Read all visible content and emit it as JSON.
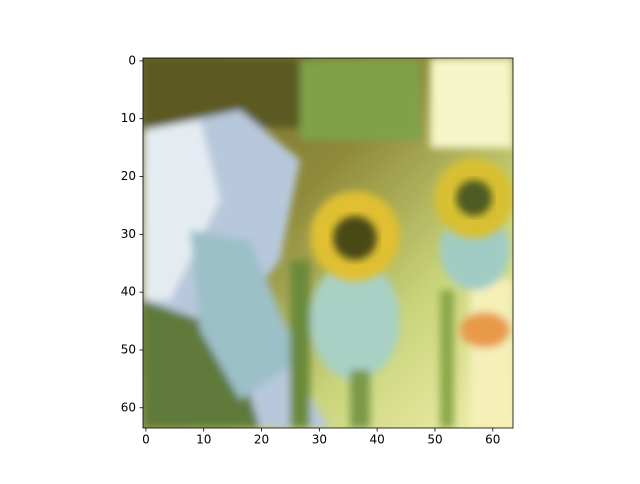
{
  "chart_data": {
    "type": "image",
    "xlim": [
      -0.5,
      63.5
    ],
    "ylim": [
      63.5,
      -0.5
    ],
    "xticks": [
      0,
      10,
      20,
      30,
      40,
      50,
      60
    ],
    "yticks": [
      0,
      10,
      20,
      30,
      40,
      50,
      60
    ]
  }
}
